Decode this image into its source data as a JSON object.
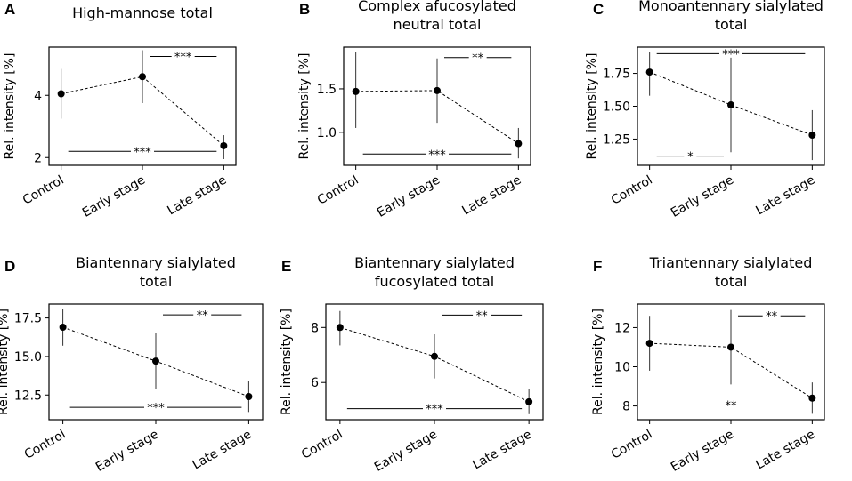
{
  "chart_data": [
    {
      "panel": "A",
      "type": "line",
      "title_lines": [
        "High-mannose total"
      ],
      "ylabel": "Rel. intensity [%]",
      "categories": [
        "Control",
        "Early stage",
        "Late stage"
      ],
      "values": [
        4.05,
        4.6,
        2.38
      ],
      "err_low": [
        3.25,
        3.75,
        1.95
      ],
      "err_high": [
        4.85,
        5.45,
        2.72
      ],
      "ylim": [
        1.75,
        5.55
      ],
      "yticks": [
        2,
        4
      ],
      "ytick_labels": [
        "2",
        "4"
      ],
      "significance": [
        {
          "from": 1,
          "to": 2,
          "y": 5.25,
          "label": "***"
        },
        {
          "from": 0,
          "to": 2,
          "y": 2.2,
          "label": "***"
        }
      ]
    },
    {
      "panel": "B",
      "type": "line",
      "title_lines": [
        "Complex afucosylated",
        "neutral total"
      ],
      "ylabel": "Rel. intensity [%]",
      "categories": [
        "Control",
        "Early stage",
        "Late stage"
      ],
      "values": [
        1.47,
        1.48,
        0.87
      ],
      "err_low": [
        1.05,
        1.11,
        0.7
      ],
      "err_high": [
        1.92,
        1.85,
        1.05
      ],
      "ylim": [
        0.62,
        1.98
      ],
      "yticks": [
        1.0,
        1.5
      ],
      "ytick_labels": [
        "1.0",
        "1.5"
      ],
      "significance": [
        {
          "from": 1,
          "to": 2,
          "y": 1.86,
          "label": "**"
        },
        {
          "from": 0,
          "to": 2,
          "y": 0.75,
          "label": "***"
        }
      ]
    },
    {
      "panel": "C",
      "type": "line",
      "title_lines": [
        "Monoantennary sialylated",
        "total"
      ],
      "ylabel": "Rel. intensity [%]",
      "categories": [
        "Control",
        "Early stage",
        "Late stage"
      ],
      "values": [
        1.76,
        1.51,
        1.28
      ],
      "err_low": [
        1.58,
        1.15,
        1.09
      ],
      "err_high": [
        1.91,
        1.87,
        1.47
      ],
      "ylim": [
        1.05,
        1.95
      ],
      "yticks": [
        1.25,
        1.5,
        1.75
      ],
      "ytick_labels": [
        "1.25",
        "1.50",
        "1.75"
      ],
      "significance": [
        {
          "from": 0,
          "to": 2,
          "y": 1.9,
          "label": "***"
        },
        {
          "from": 0,
          "to": 1,
          "y": 1.12,
          "label": "*"
        }
      ]
    },
    {
      "panel": "D",
      "type": "line",
      "title_lines": [
        "Biantennary sialylated",
        "total"
      ],
      "ylabel": "Rel. intensity [%]",
      "categories": [
        "Control",
        "Early stage",
        "Late stage"
      ],
      "values": [
        16.9,
        14.7,
        12.4
      ],
      "err_low": [
        15.7,
        12.9,
        11.4
      ],
      "err_high": [
        18.1,
        16.5,
        13.4
      ],
      "ylim": [
        10.9,
        18.4
      ],
      "yticks": [
        12.5,
        15.0,
        17.5
      ],
      "ytick_labels": [
        "12.5",
        "15.0",
        "17.5"
      ],
      "significance": [
        {
          "from": 1,
          "to": 2,
          "y": 17.7,
          "label": "**"
        },
        {
          "from": 0,
          "to": 2,
          "y": 11.7,
          "label": "***"
        }
      ]
    },
    {
      "panel": "E",
      "type": "line",
      "title_lines": [
        "Biantennary sialylated",
        "fucosylated total"
      ],
      "ylabel": "Rel. intensity [%]",
      "categories": [
        "Control",
        "Early stage",
        "Late stage"
      ],
      "values": [
        8.0,
        6.95,
        5.3
      ],
      "err_low": [
        7.35,
        6.15,
        4.85
      ],
      "err_high": [
        8.6,
        7.75,
        5.75
      ],
      "ylim": [
        4.65,
        8.85
      ],
      "yticks": [
        6,
        8
      ],
      "ytick_labels": [
        "6",
        "8"
      ],
      "significance": [
        {
          "from": 1,
          "to": 2,
          "y": 8.45,
          "label": "**"
        },
        {
          "from": 0,
          "to": 2,
          "y": 5.05,
          "label": "***"
        }
      ]
    },
    {
      "panel": "F",
      "type": "line",
      "title_lines": [
        "Triantennary sialylated",
        "total"
      ],
      "ylabel": "Rel. intensity [%]",
      "categories": [
        "Control",
        "Early stage",
        "Late stage"
      ],
      "values": [
        11.2,
        11.0,
        8.4
      ],
      "err_low": [
        9.8,
        9.1,
        7.6
      ],
      "err_high": [
        12.6,
        12.9,
        9.2
      ],
      "ylim": [
        7.3,
        13.2
      ],
      "yticks": [
        8,
        10,
        12
      ],
      "ytick_labels": [
        "8",
        "10",
        "12"
      ],
      "significance": [
        {
          "from": 1,
          "to": 2,
          "y": 12.6,
          "label": "**"
        },
        {
          "from": 0,
          "to": 2,
          "y": 8.05,
          "label": "**"
        }
      ]
    }
  ]
}
